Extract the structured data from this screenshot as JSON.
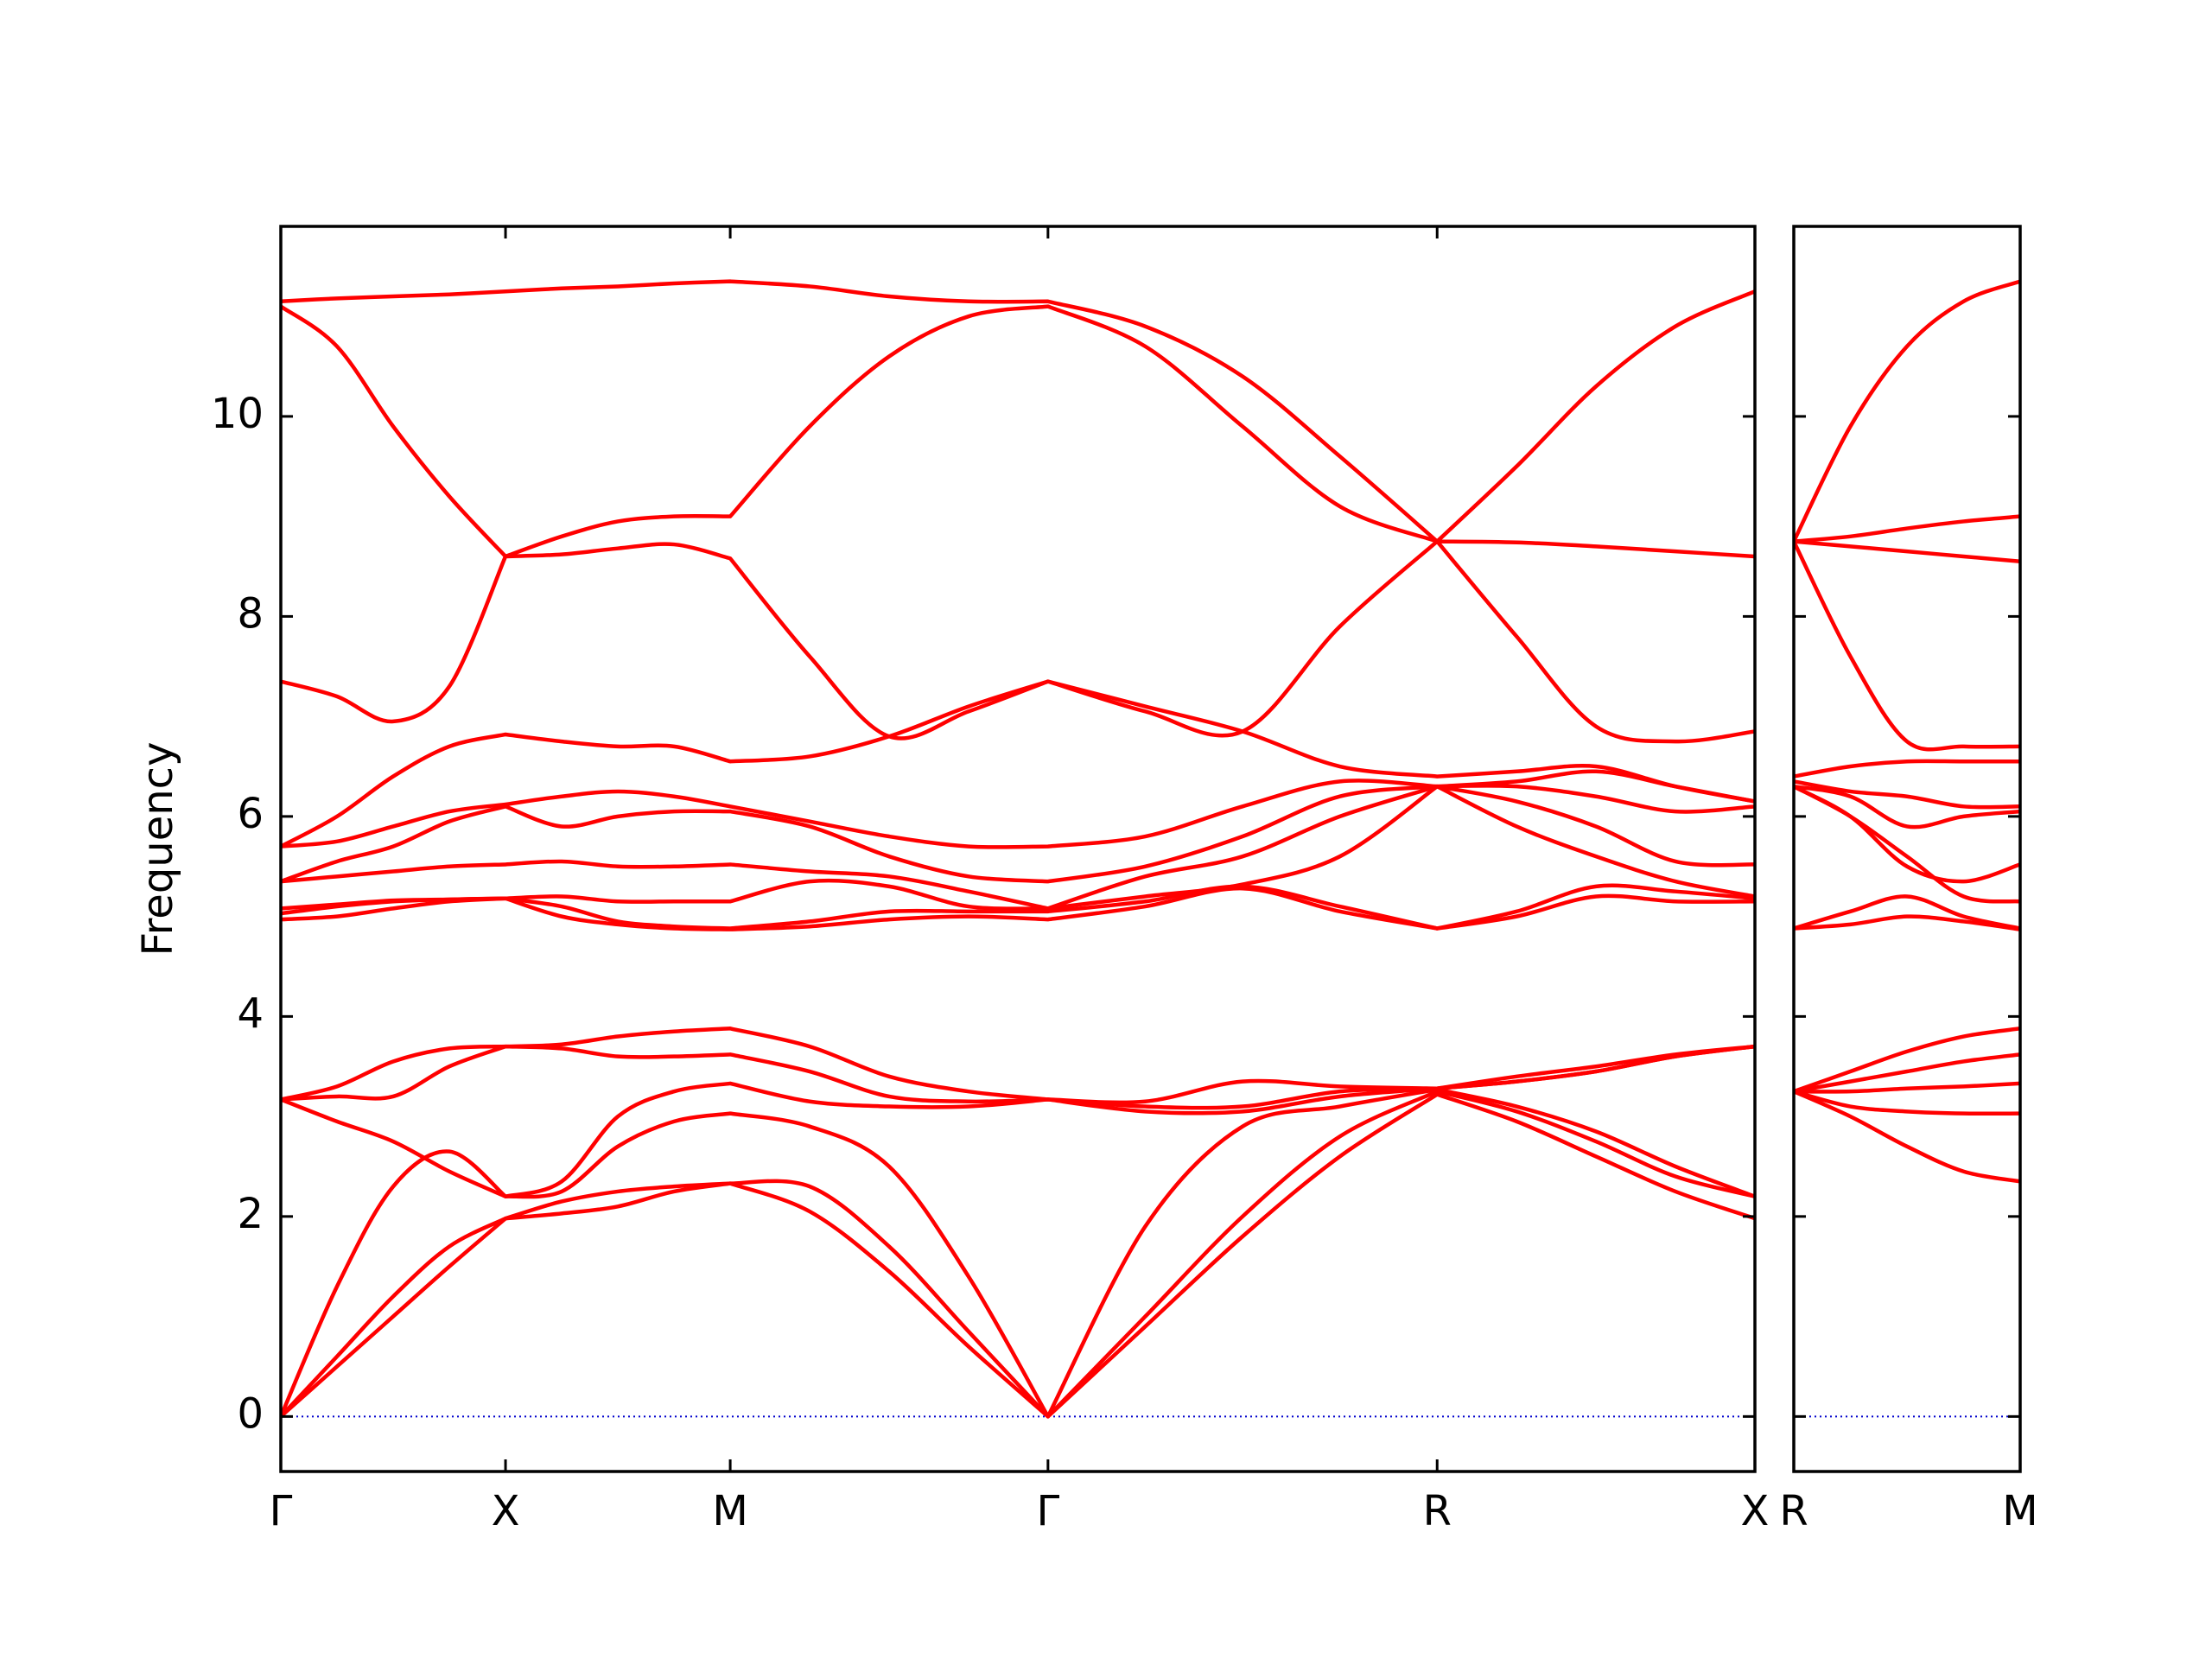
{
  "chart_data": [
    {
      "type": "line",
      "ylabel": "Frequency",
      "color": "#ff0000",
      "zero_line_color": "#0000cc",
      "xlim": [
        0,
        3.2802
      ],
      "ylim": [
        -0.55,
        11.9
      ],
      "xticks": [
        {
          "value": 0,
          "label": "Γ"
        },
        {
          "value": 0.5,
          "label": "X"
        },
        {
          "value": 1,
          "label": "M"
        },
        {
          "value": 1.7071,
          "label": "Γ"
        },
        {
          "value": 2.5731,
          "label": "R"
        },
        {
          "value": 3.2802,
          "label": "X"
        }
      ],
      "yticks": [
        0,
        2,
        4,
        6,
        8,
        10
      ],
      "x": [
        0,
        0.125,
        0.25,
        0.375,
        0.5,
        0.625,
        0.75,
        0.875,
        1,
        1.1768,
        1.3536,
        1.5303,
        1.7071,
        1.9236,
        2.1401,
        2.3566,
        2.5731,
        2.7499,
        2.9266,
        3.1034,
        3.2802
      ],
      "series": [
        {
          "values": [
            0,
            0.5,
            1.0,
            1.5,
            1.98,
            2.03,
            2.1,
            2.25,
            2.33,
            2.05,
            1.45,
            0.7,
            0,
            0.9,
            1.8,
            2.6,
            3.22,
            2.95,
            2.6,
            2.25,
            1.98
          ]
        },
        {
          "values": [
            0,
            0.6,
            1.2,
            1.7,
            1.98,
            2.15,
            2.25,
            2.3,
            2.33,
            2.3,
            1.7,
            0.85,
            0,
            1.0,
            2.0,
            2.8,
            3.25,
            3.05,
            2.75,
            2.4,
            2.2
          ]
        },
        {
          "values": [
            0,
            1.3,
            2.3,
            2.65,
            2.2,
            2.25,
            2.7,
            2.95,
            3.03,
            2.9,
            2.5,
            1.4,
            0,
            1.9,
            2.9,
            3.1,
            3.27,
            3.1,
            2.85,
            2.5,
            2.2
          ]
        },
        {
          "values": [
            3.17,
            2.95,
            2.75,
            2.45,
            2.2,
            2.35,
            3.0,
            3.25,
            3.33,
            3.15,
            3.1,
            3.1,
            3.17,
            3.05,
            3.05,
            3.2,
            3.28,
            3.35,
            3.45,
            3.6,
            3.7
          ]
        },
        {
          "values": [
            3.17,
            3.2,
            3.2,
            3.5,
            3.7,
            3.68,
            3.6,
            3.6,
            3.62,
            3.45,
            3.2,
            3.15,
            3.17,
            3.1,
            3.1,
            3.25,
            3.28,
            3.35,
            3.45,
            3.6,
            3.7
          ]
        },
        {
          "values": [
            3.17,
            3.3,
            3.55,
            3.68,
            3.7,
            3.72,
            3.8,
            3.85,
            3.88,
            3.7,
            3.4,
            3.25,
            3.17,
            3.15,
            3.35,
            3.3,
            3.28,
            3.4,
            3.5,
            3.62,
            3.7
          ]
        },
        {
          "values": [
            4.97,
            5.0,
            5.08,
            5.15,
            5.18,
            5.0,
            4.92,
            4.88,
            4.87,
            4.9,
            4.97,
            5.0,
            4.97,
            5.1,
            5.28,
            5.05,
            4.88,
            5.0,
            5.2,
            5.15,
            5.15
          ]
        },
        {
          "values": [
            5.03,
            5.1,
            5.15,
            5.17,
            5.18,
            5.1,
            4.95,
            4.9,
            4.88,
            4.95,
            5.05,
            5.05,
            5.05,
            5.15,
            5.3,
            5.1,
            4.88,
            5.05,
            5.3,
            5.25,
            5.18
          ]
        },
        {
          "values": [
            5.08,
            5.12,
            5.16,
            5.17,
            5.18,
            5.2,
            5.15,
            5.15,
            5.15,
            5.35,
            5.3,
            5.1,
            5.08,
            5.2,
            5.32,
            5.6,
            6.3,
            5.9,
            5.6,
            5.35,
            5.2
          ]
        },
        {
          "values": [
            5.35,
            5.4,
            5.45,
            5.5,
            5.52,
            5.55,
            5.5,
            5.5,
            5.52,
            5.45,
            5.4,
            5.25,
            5.08,
            5.4,
            5.6,
            6.0,
            6.3,
            6.15,
            5.9,
            5.55,
            5.52
          ]
        },
        {
          "values": [
            5.35,
            5.55,
            5.7,
            5.95,
            6.1,
            5.9,
            6.0,
            6.05,
            6.05,
            5.9,
            5.6,
            5.4,
            5.35,
            5.5,
            5.8,
            6.2,
            6.3,
            6.3,
            6.2,
            6.05,
            6.1
          ]
        },
        {
          "values": [
            5.7,
            5.75,
            5.9,
            6.05,
            6.12,
            6.2,
            6.25,
            6.2,
            6.1,
            5.95,
            5.8,
            5.7,
            5.7,
            5.8,
            6.1,
            6.35,
            6.3,
            6.35,
            6.45,
            6.3,
            6.15
          ]
        },
        {
          "values": [
            5.7,
            6.0,
            6.4,
            6.7,
            6.82,
            6.75,
            6.7,
            6.7,
            6.55,
            6.6,
            6.8,
            7.1,
            7.35,
            7.1,
            6.85,
            6.5,
            6.4,
            6.45,
            6.5,
            6.3,
            6.15
          ]
        },
        {
          "values": [
            7.35,
            7.2,
            6.95,
            7.3,
            8.6,
            8.62,
            8.68,
            8.72,
            8.58,
            7.6,
            6.8,
            7.05,
            7.35,
            7.05,
            6.85,
            7.9,
            8.75,
            7.8,
            6.9,
            6.75,
            6.85
          ]
        },
        {
          "values": [
            11.1,
            10.7,
            9.9,
            9.2,
            8.6,
            8.8,
            8.95,
            9.0,
            9.0,
            9.9,
            10.6,
            11.0,
            11.1,
            10.7,
            9.9,
            9.1,
            8.75,
            8.74,
            8.7,
            8.65,
            8.6
          ]
        },
        {
          "values": [
            11.15,
            11.18,
            11.2,
            11.22,
            11.25,
            11.28,
            11.3,
            11.33,
            11.35,
            11.3,
            11.2,
            11.15,
            11.15,
            10.9,
            10.4,
            9.6,
            8.75,
            9.5,
            10.3,
            10.9,
            11.25
          ]
        }
      ]
    },
    {
      "type": "line",
      "color": "#ff0000",
      "zero_line_color": "#0000cc",
      "xlim": [
        3.2802,
        3.7802
      ],
      "ylim": [
        -0.55,
        11.9
      ],
      "xticks": [
        {
          "value": 3.2802,
          "label": "R"
        },
        {
          "value": 3.7802,
          "label": "M"
        }
      ],
      "x": [
        3.2802,
        3.4052,
        3.5302,
        3.6552,
        3.7802
      ],
      "series": [
        {
          "values": [
            3.25,
            3.0,
            2.7,
            2.45,
            2.35
          ]
        },
        {
          "values": [
            3.25,
            3.1,
            3.05,
            3.03,
            3.03
          ]
        },
        {
          "values": [
            3.25,
            3.25,
            3.28,
            3.3,
            3.33
          ]
        },
        {
          "values": [
            3.25,
            3.35,
            3.45,
            3.55,
            3.62
          ]
        },
        {
          "values": [
            3.25,
            3.45,
            3.65,
            3.8,
            3.88
          ]
        },
        {
          "values": [
            4.88,
            4.92,
            5.0,
            4.95,
            4.87
          ]
        },
        {
          "values": [
            4.88,
            5.05,
            5.2,
            5.0,
            4.88
          ]
        },
        {
          "values": [
            6.3,
            6.0,
            5.6,
            5.2,
            5.15
          ]
        },
        {
          "values": [
            6.3,
            6.0,
            5.5,
            5.35,
            5.52
          ]
        },
        {
          "values": [
            6.3,
            6.2,
            5.9,
            6.0,
            6.05
          ]
        },
        {
          "values": [
            6.35,
            6.25,
            6.2,
            6.1,
            6.1
          ]
        },
        {
          "values": [
            6.4,
            6.5,
            6.55,
            6.55,
            6.55
          ]
        },
        {
          "values": [
            8.75,
            7.6,
            6.75,
            6.7,
            6.7
          ]
        },
        {
          "values": [
            8.75,
            8.7,
            8.65,
            8.6,
            8.55
          ]
        },
        {
          "values": [
            8.75,
            8.8,
            8.88,
            8.95,
            9.0
          ]
        },
        {
          "values": [
            8.75,
            9.9,
            10.7,
            11.15,
            11.35
          ]
        }
      ]
    }
  ]
}
